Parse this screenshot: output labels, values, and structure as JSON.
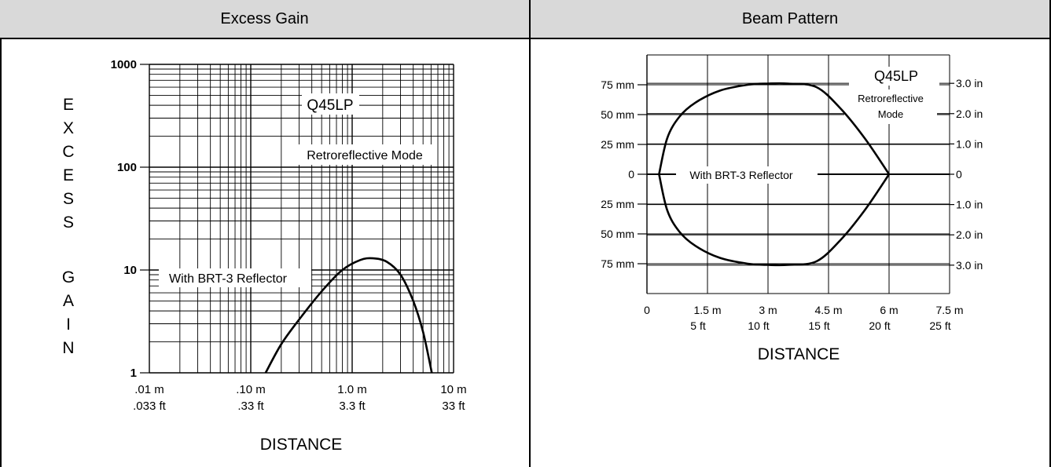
{
  "chart_data": [
    {
      "type": "line",
      "panel_title": "Excess Gain",
      "xlabel": "DISTANCE",
      "ylabel": "EXCESS GAIN",
      "xscale": "log",
      "yscale": "log",
      "xlim": [
        0.01,
        10
      ],
      "ylim": [
        1,
        1000
      ],
      "x_ticks": [
        {
          "value": 0.01,
          "m": ".01 m",
          "ft": ".033 ft"
        },
        {
          "value": 0.1,
          "m": ".10 m",
          "ft": ".33 ft"
        },
        {
          "value": 1.0,
          "m": "1.0 m",
          "ft": "3.3 ft"
        },
        {
          "value": 10,
          "m": "10 m",
          "ft": "33 ft"
        }
      ],
      "y_ticks": [
        {
          "value": 1,
          "label": "1"
        },
        {
          "value": 10,
          "label": "10"
        },
        {
          "value": 100,
          "label": "100"
        },
        {
          "value": 1000,
          "label": "1000"
        }
      ],
      "grid": true,
      "annotations": {
        "model": "Q45LP",
        "mode": "Retroreflective Mode",
        "curve_label": "With BRT-3 Reflector"
      },
      "series": [
        {
          "name": "With BRT-3 Reflector",
          "x": [
            0.14,
            0.2,
            0.3,
            0.5,
            0.8,
            1.2,
            1.6,
            2.2,
            3.0,
            4.0,
            5.0,
            6.1
          ],
          "y": [
            1,
            1.9,
            3.3,
            6.2,
            10,
            12.5,
            13,
            12,
            9,
            5,
            2.5,
            1
          ]
        }
      ]
    },
    {
      "type": "line",
      "panel_title": "Beam Pattern",
      "xlabel": "DISTANCE",
      "xlim": [
        0,
        7.5
      ],
      "ylim_mm": [
        -100,
        100
      ],
      "x_ticks": [
        {
          "value": 0,
          "m": "0",
          "ft": ""
        },
        {
          "value": 1.5,
          "m": "1.5 m",
          "ft": "5 ft"
        },
        {
          "value": 3,
          "m": "3 m",
          "ft": "10 ft"
        },
        {
          "value": 4.5,
          "m": "4.5 m",
          "ft": "15 ft"
        },
        {
          "value": 6,
          "m": "6 m",
          "ft": "20 ft"
        },
        {
          "value": 7.5,
          "m": "7.5 m",
          "ft": "25 ft"
        }
      ],
      "y_ticks_left": [
        {
          "value": 75,
          "label": "75 mm"
        },
        {
          "value": 50,
          "label": "50 mm"
        },
        {
          "value": 25,
          "label": "25 mm"
        },
        {
          "value": 0,
          "label": "0"
        },
        {
          "value": -25,
          "label": "25 mm"
        },
        {
          "value": -50,
          "label": "50 mm"
        },
        {
          "value": -75,
          "label": "75 mm"
        }
      ],
      "y_ticks_right": [
        {
          "value": 76.2,
          "label": "3.0 in"
        },
        {
          "value": 50.8,
          "label": "2.0 in"
        },
        {
          "value": 25.4,
          "label": "1.0 in"
        },
        {
          "value": 0,
          "label": "0"
        },
        {
          "value": -25.4,
          "label": "1.0 in"
        },
        {
          "value": -50.8,
          "label": "2.0 in"
        },
        {
          "value": -76.2,
          "label": "3.0 in"
        }
      ],
      "grid": true,
      "annotations": {
        "model": "Q45LP",
        "mode_line1": "Retroreflective",
        "mode_line2": "Mode",
        "curve_label": "With BRT-3 Reflector"
      },
      "series": [
        {
          "name": "With BRT-3 Reflector",
          "x": [
            0.3,
            0.5,
            0.8,
            1.2,
            1.8,
            2.5,
            3.0,
            3.5,
            4.2,
            4.8,
            5.4,
            6.0
          ],
          "y": [
            0,
            30,
            48,
            60,
            70,
            75,
            76,
            76,
            73,
            55,
            30,
            0
          ]
        }
      ]
    }
  ]
}
